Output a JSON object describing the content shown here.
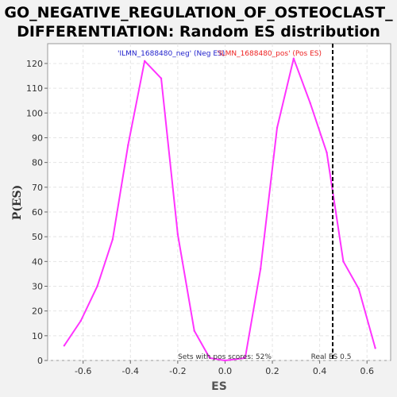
{
  "chart_data": {
    "type": "line",
    "title_lines": [
      "GO_NEGATIVE_REGULATION_OF_OSTEOCLAST_",
      "DIFFERENTIATION: Random ES distribution"
    ],
    "xlabel": "ES",
    "ylabel": "P(ES)",
    "xlim": [
      -0.75,
      0.7
    ],
    "ylim": [
      0,
      128
    ],
    "x_ticks": [
      -0.6,
      -0.4,
      -0.2,
      0.0,
      0.2,
      0.4,
      0.6
    ],
    "x_tick_labels": [
      "-0.6",
      "-0.4",
      "-0.2",
      "0.0",
      "0.2",
      "0.4",
      "0.6"
    ],
    "y_ticks": [
      0,
      10,
      20,
      30,
      40,
      50,
      60,
      70,
      80,
      90,
      100,
      110,
      120
    ],
    "y_tick_labels": [
      "0",
      "10",
      "20",
      "30",
      "40",
      "50",
      "60",
      "70",
      "80",
      "90",
      "100",
      "110",
      "120"
    ],
    "grid": true,
    "series": [
      {
        "color": "#ff33ff",
        "x": [
          -0.68,
          -0.61,
          -0.54,
          -0.475,
          -0.41,
          -0.34,
          -0.27,
          -0.2,
          -0.13,
          -0.065,
          0.0,
          0.085,
          0.15,
          0.22,
          0.29,
          0.36,
          0.43,
          0.5,
          0.565,
          0.635
        ],
        "y": [
          6,
          16,
          30,
          49,
          87,
          121,
          114,
          51,
          12,
          1,
          0,
          1,
          37,
          94,
          122,
          104,
          84,
          40,
          29,
          5
        ]
      }
    ],
    "vline": {
      "x": 0.455,
      "label": "Real ES 0.5",
      "color": "#000000",
      "style": "dashed"
    },
    "legend": {
      "position": "top",
      "entries": [
        {
          "text": "'ILMN_1688480_neg' (Neg ES)",
          "color": "#2222cc"
        },
        {
          "text": "'ILMN_1688480_pos' (Pos ES)",
          "color": "#ee2222"
        }
      ]
    },
    "annotation": "Sets with pos scores: 52%"
  }
}
